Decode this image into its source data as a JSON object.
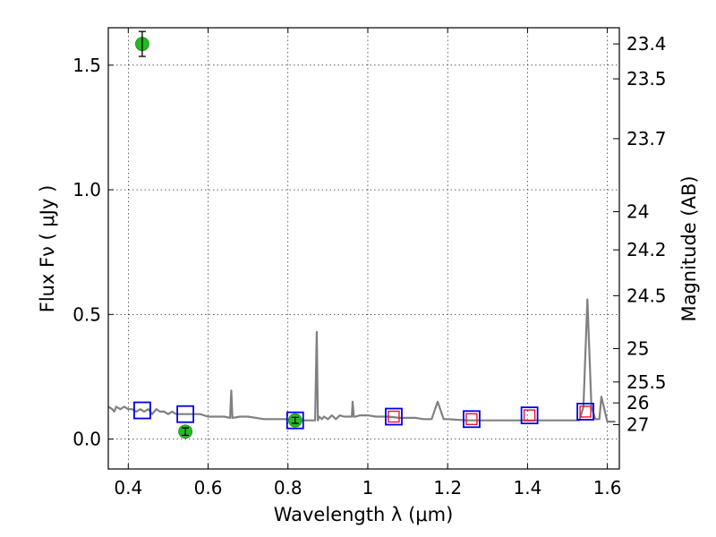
{
  "chart_data": {
    "type": "scatter",
    "title": "",
    "xlabel": "Wavelength  λ (μm)",
    "ylabel": "Flux  Fν  ( μJy )",
    "y2label": "Magnitude (AB)",
    "xlim": [
      0.35,
      1.63
    ],
    "ylim": [
      -0.12,
      1.65
    ],
    "grid": true,
    "x_ticks": [
      0.4,
      0.6,
      0.8,
      1.0,
      1.2,
      1.4,
      1.6
    ],
    "x_tick_labels": [
      "0.4",
      "0.6",
      "0.8",
      "1",
      "1.2",
      "1.4",
      "1.6"
    ],
    "y_ticks": [
      0.0,
      0.5,
      1.0,
      1.5
    ],
    "y_tick_labels": [
      "0.0",
      "0.5",
      "1.0",
      "1.5"
    ],
    "y2_ticks": [
      {
        "flux": 1.585,
        "label": "23.4"
      },
      {
        "flux": 1.445,
        "label": "23.5"
      },
      {
        "flux": 1.205,
        "label": "23.7"
      },
      {
        "flux": 0.912,
        "label": "24"
      },
      {
        "flux": 0.759,
        "label": "24.2"
      },
      {
        "flux": 0.575,
        "label": "24.5"
      },
      {
        "flux": 0.363,
        "label": "25"
      },
      {
        "flux": 0.229,
        "label": "25.5"
      },
      {
        "flux": 0.145,
        "label": "26"
      },
      {
        "flux": 0.058,
        "label": "27"
      }
    ],
    "series": [
      {
        "kind": "line",
        "color": "#808080",
        "x": [
          0.35,
          0.36,
          0.365,
          0.37,
          0.38,
          0.39,
          0.4,
          0.41,
          0.42,
          0.43,
          0.44,
          0.45,
          0.46,
          0.47,
          0.48,
          0.49,
          0.5,
          0.51,
          0.52,
          0.53,
          0.54,
          0.55,
          0.56,
          0.58,
          0.6,
          0.62,
          0.64,
          0.655,
          0.658,
          0.661,
          0.68,
          0.7,
          0.72,
          0.74,
          0.76,
          0.78,
          0.8,
          0.82,
          0.84,
          0.86,
          0.868,
          0.872,
          0.875,
          0.878,
          0.885,
          0.89,
          0.9,
          0.91,
          0.92,
          0.93,
          0.94,
          0.95,
          0.96,
          0.962,
          0.965,
          0.97,
          0.98,
          1.0,
          1.02,
          1.05,
          1.08,
          1.1,
          1.12,
          1.14,
          1.16,
          1.175,
          1.19,
          1.2,
          1.25,
          1.3,
          1.35,
          1.4,
          1.45,
          1.5,
          1.53,
          1.54,
          1.55,
          1.56,
          1.57,
          1.58,
          1.585,
          1.6,
          1.62
        ],
        "y": [
          0.13,
          0.12,
          0.11,
          0.13,
          0.12,
          0.13,
          0.12,
          0.12,
          0.11,
          0.12,
          0.11,
          0.12,
          0.1,
          0.12,
          0.11,
          0.11,
          0.1,
          0.11,
          0.1,
          0.1,
          0.1,
          0.1,
          0.1,
          0.1,
          0.09,
          0.09,
          0.09,
          0.085,
          0.195,
          0.085,
          0.09,
          0.09,
          0.085,
          0.08,
          0.08,
          0.08,
          0.08,
          0.08,
          0.075,
          0.075,
          0.075,
          0.43,
          0.075,
          0.09,
          0.08,
          0.09,
          0.08,
          0.095,
          0.08,
          0.095,
          0.09,
          0.09,
          0.09,
          0.15,
          0.09,
          0.09,
          0.095,
          0.095,
          0.09,
          0.09,
          0.085,
          0.085,
          0.085,
          0.08,
          0.08,
          0.15,
          0.08,
          0.08,
          0.075,
          0.075,
          0.075,
          0.075,
          0.075,
          0.075,
          0.075,
          0.13,
          0.56,
          0.13,
          0.08,
          0.08,
          0.17,
          0.07,
          0.07
        ]
      },
      {
        "kind": "squares-blue",
        "color": "#0000ee",
        "x": [
          0.435,
          0.543,
          0.818,
          1.065,
          1.26,
          1.405,
          1.545
        ],
        "y": [
          0.115,
          0.1,
          0.075,
          0.09,
          0.08,
          0.095,
          0.11
        ]
      },
      {
        "kind": "squares-red",
        "color": "#e8142d",
        "x": [
          1.065,
          1.26,
          1.405,
          1.545
        ],
        "y": [
          0.09,
          0.08,
          0.095,
          0.11
        ]
      },
      {
        "kind": "points-green",
        "color": "#22bb22",
        "x": [
          0.435,
          0.543,
          0.818
        ],
        "y": [
          1.585,
          0.03,
          0.075
        ],
        "yerr": [
          0.05,
          0.015,
          0.012
        ]
      }
    ]
  }
}
